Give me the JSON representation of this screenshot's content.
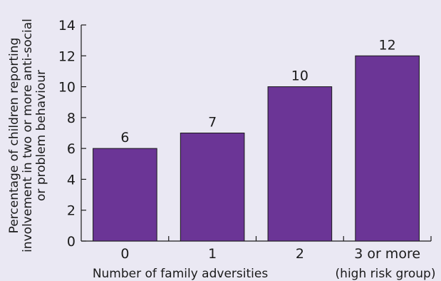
{
  "chart_data": {
    "type": "bar",
    "categories": [
      "0",
      "1",
      "2",
      "3 or more"
    ],
    "values": [
      6,
      7,
      10,
      12
    ],
    "data_labels": [
      "6",
      "7",
      "10",
      "12"
    ],
    "ylabel_lines": [
      "Percentage of children reporting",
      "involvement in two or more anti-social",
      "or problem behaviour"
    ],
    "xlabel": "Number of family adversities",
    "xlabel_extra": "(high risk group)",
    "ylim": [
      0,
      14
    ],
    "yticks": [
      0,
      2,
      4,
      6,
      8,
      10,
      12,
      14
    ],
    "grid": false,
    "colors": {
      "bar": "#6b3596",
      "background": "#eae8f3",
      "axis": "#1a1a1a"
    }
  }
}
